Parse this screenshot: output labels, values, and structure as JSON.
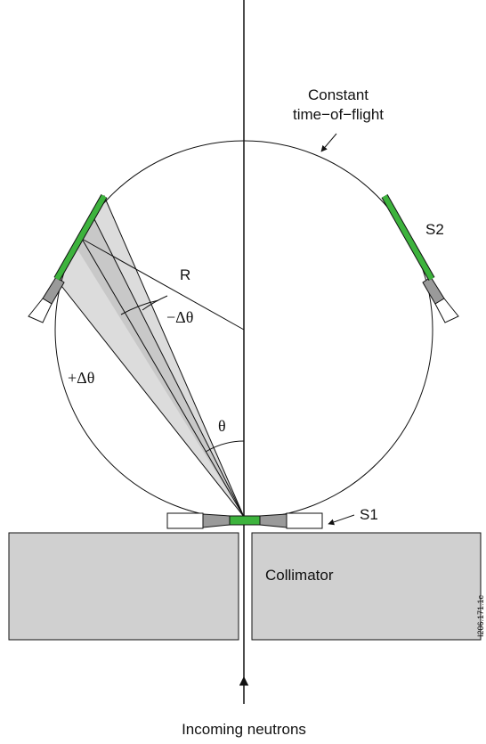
{
  "labels": {
    "tof_line1": "Constant",
    "tof_line2": "time−of−flight",
    "s2": "S2",
    "s1": "S1",
    "radius": "R",
    "minus_dtheta": "−Δθ",
    "plus_dtheta": "+Δθ",
    "theta": "θ",
    "collimator": "Collimator",
    "incoming": "Incoming neutrons",
    "figure_id": "I206.171.1c"
  }
}
